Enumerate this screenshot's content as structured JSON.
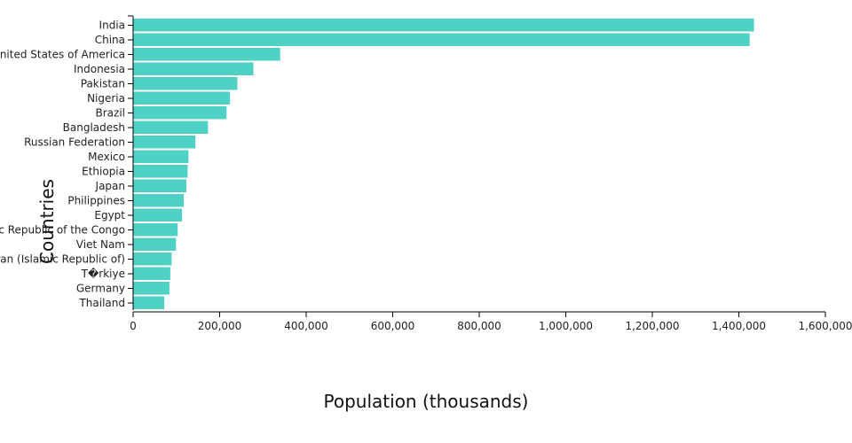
{
  "chart_data": {
    "type": "bar",
    "orientation": "horizontal",
    "bar_color": "#50d1c6",
    "xlabel": "Population (thousands)",
    "ylabel": "Countries",
    "xlim": [
      0,
      1600000
    ],
    "x_ticks": [
      0,
      200000,
      400000,
      600000,
      800000,
      1000000,
      1200000,
      1400000,
      1600000
    ],
    "x_tick_labels": [
      "0",
      "200,000",
      "400,000",
      "600,000",
      "800,000",
      "1,000,000",
      "1,200,000",
      "1,400,000",
      "1,600,000"
    ],
    "categories": [
      "India",
      "China",
      "United States of America",
      "Indonesia",
      "Pakistan",
      "Nigeria",
      "Brazil",
      "Bangladesh",
      "Russian Federation",
      "Mexico",
      "Ethiopia",
      "Japan",
      "Philippines",
      "Egypt",
      "Democratic Republic of the Congo",
      "Viet Nam",
      "Iran (Islamic Republic of)",
      "T�rkiye",
      "Germany",
      "Thailand"
    ],
    "values": [
      1435000,
      1425000,
      340000,
      278000,
      241000,
      224000,
      216000,
      173000,
      144000,
      128000,
      126000,
      123000,
      117000,
      113000,
      103000,
      99000,
      89000,
      86000,
      84000,
      72000
    ]
  }
}
